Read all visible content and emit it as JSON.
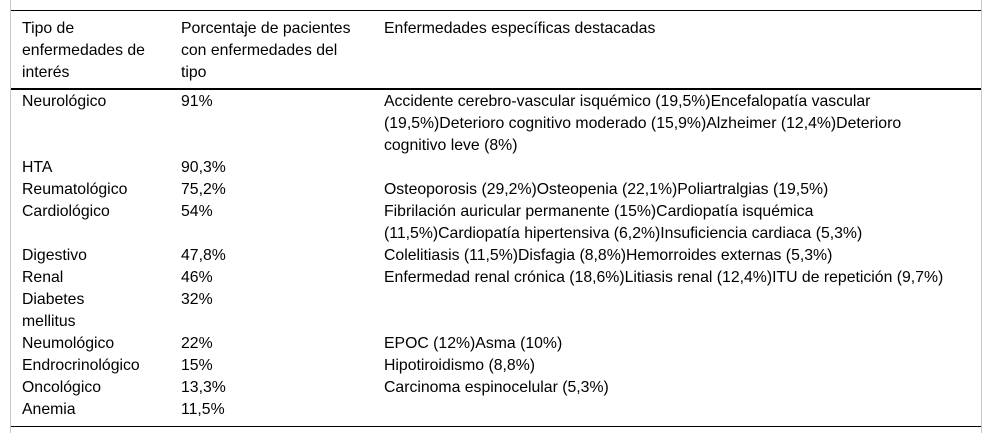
{
  "table": {
    "columns": [
      "Tipo de\nenfermedades de\ninterés",
      "Porcentaje de pacientes\ncon enfermedades del\ntipo",
      "Enfermedades específicas destacadas"
    ],
    "rows": [
      {
        "tipo": "Neurológico",
        "porcentaje": "91%",
        "detalles": "Accidente cerebro-vascular isquémico (19,5%)Encefalopatía vascular\n(19,5%)Deterioro cognitivo moderado (15,9%)Alzheimer (12,4%)Deterioro\ncognitivo leve (8%)"
      },
      {
        "tipo": "HTA",
        "porcentaje": "90,3%",
        "detalles": ""
      },
      {
        "tipo": "Reumatológico",
        "porcentaje": "75,2%",
        "detalles": "Osteoporosis (29,2%)Osteopenia (22,1%)Poliartralgias (19,5%)"
      },
      {
        "tipo": "Cardiológico",
        "porcentaje": "54%",
        "detalles": "Fibrilación auricular permanente (15%)Cardiopatía isquémica\n(11,5%)Cardiopatía hipertensiva (6,2%)Insuficiencia cardiaca (5,3%)"
      },
      {
        "tipo": "Digestivo",
        "porcentaje": "47,8%",
        "detalles": "Colelitiasis (11,5%)Disfagia (8,8%)Hemorroides externas (5,3%)"
      },
      {
        "tipo": "Renal",
        "porcentaje": "46%",
        "detalles": "Enfermedad renal crónica (18,6%)Litiasis renal (12,4%)ITU de repetición (9,7%)"
      },
      {
        "tipo": "Diabetes\nmellitus",
        "porcentaje": "32%",
        "detalles": ""
      },
      {
        "tipo": "Neumológico",
        "porcentaje": "22%",
        "detalles": "EPOC (12%)Asma (10%)"
      },
      {
        "tipo": "Endrocrinológico",
        "porcentaje": "15%",
        "detalles": "Hipotiroidismo (8,8%)"
      },
      {
        "tipo": "Oncológico",
        "porcentaje": "13,3%",
        "detalles": "Carcinoma espinocelular (5,3%)"
      },
      {
        "tipo": "Anemia",
        "porcentaje": "11,5%",
        "detalles": ""
      }
    ]
  },
  "colors": {
    "rule": "#000000",
    "frame_edge": "#c9c9c9",
    "text": "#000000",
    "background": "#ffffff"
  }
}
